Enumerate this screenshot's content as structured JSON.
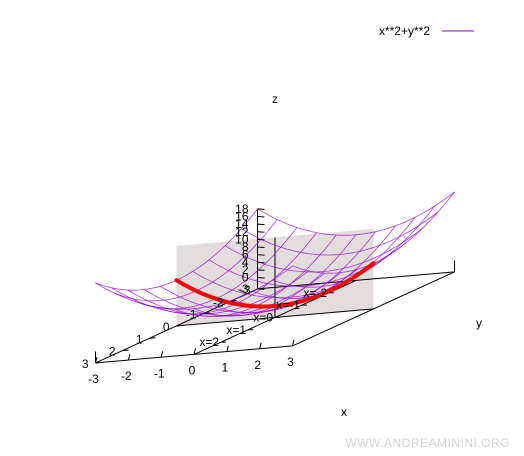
{
  "chart_data": {
    "type": "surface",
    "series": [
      {
        "name": "x**2+y**2",
        "expression": "x**2+y**2",
        "color": "#9400d3"
      }
    ],
    "highlight": {
      "description": "intersection with plane x=0",
      "expression": "y**2",
      "color": "#ff0000"
    },
    "plane": {
      "x": 0,
      "color": "#e2dcdc"
    },
    "xrange": [
      -3,
      3
    ],
    "yrange": [
      -3,
      3
    ],
    "zrange": [
      -3,
      18
    ],
    "x_ticks": [
      "-3",
      "-2",
      "-1",
      "0",
      "1",
      "2",
      "3"
    ],
    "y_ticks": [
      "-3",
      "-2",
      "-1",
      "0",
      "1",
      "2",
      "3"
    ],
    "z_ticks": [
      "-3",
      "0",
      "2",
      "4",
      "6",
      "8",
      "10",
      "12",
      "14",
      "16",
      "18"
    ],
    "xlabel": "x",
    "ylabel": "y",
    "zlabel": "z",
    "annotations": [
      "x=-2",
      "x=-1",
      "x=0",
      "x=1",
      "x=2"
    ],
    "legend_position": "top-right"
  },
  "watermark": "WWW.ANDREAMININI.ORG"
}
